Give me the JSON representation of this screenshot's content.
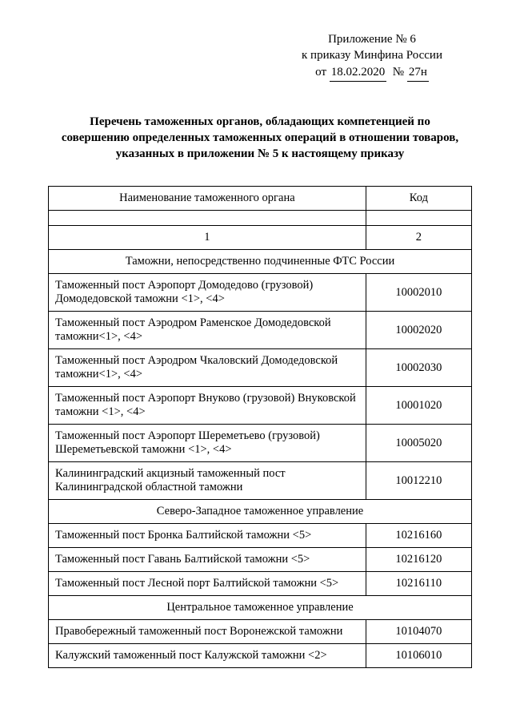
{
  "header": {
    "line1": "Приложение № 6",
    "line2": "к приказу Минфина России",
    "line3_prefix": "от",
    "date": "18.02.2020",
    "num_symbol": "№",
    "number": "27н"
  },
  "title": "Перечень таможенных органов, обладающих компетенцией по совершению определенных таможенных операций в отношении товаров, указанных в приложении № 5 к настоящему приказу",
  "table": {
    "col1_header": "Наименование таможенного органа",
    "col2_header": "Код",
    "col1_num": "1",
    "col2_num": "2",
    "sections": [
      {
        "title": "Таможни, непосредственно подчиненные ФТС России",
        "rows": [
          {
            "name": "Таможенный пост Аэропорт Домодедово (грузовой) Домодедовской таможни <1>, <4>",
            "code": "10002010"
          },
          {
            "name": "Таможенный пост Аэродром Раменское Домодедовской таможни<1>, <4>",
            "code": "10002020"
          },
          {
            "name": "Таможенный пост Аэродром Чкаловский Домодедовской таможни<1>, <4>",
            "code": "10002030"
          },
          {
            "name": "Таможенный пост Аэропорт Внуково (грузовой) Внуковской таможни  <1>, <4>",
            "code": "10001020"
          },
          {
            "name": "Таможенный пост Аэропорт Шереметьево (грузовой) Шереметьевской таможни  <1>, <4>",
            "code": "10005020"
          },
          {
            "name": "Калининградский акцизный таможенный пост Калининградской областной таможни",
            "code": "10012210"
          }
        ]
      },
      {
        "title": "Северо-Западное таможенное управление",
        "rows": [
          {
            "name": "Таможенный пост Бронка Балтийской таможни <5>",
            "code": "10216160"
          },
          {
            "name": "Таможенный пост Гавань Балтийской таможни <5>",
            "code": "10216120"
          },
          {
            "name": "Таможенный пост Лесной порт Балтийской таможни <5>",
            "code": "10216110"
          }
        ]
      },
      {
        "title": "Центральное таможенное управление",
        "rows": [
          {
            "name": "Правобережный таможенный пост Воронежской таможни",
            "code": "10104070"
          },
          {
            "name": "Калужский таможенный пост Калужской таможни <2>",
            "code": "10106010"
          }
        ]
      }
    ]
  }
}
